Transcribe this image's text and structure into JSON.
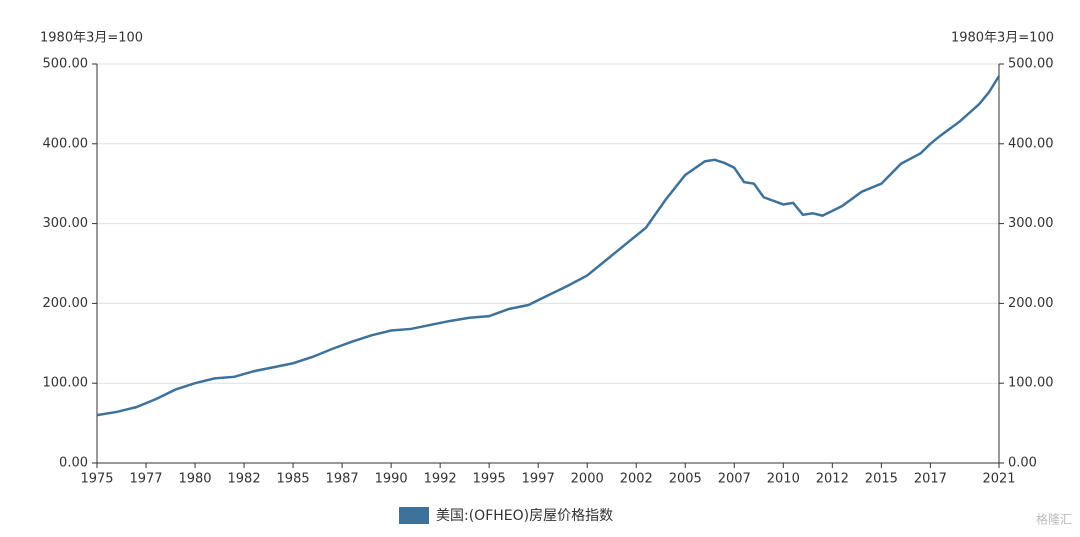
{
  "chart_data": {
    "type": "line",
    "y_label": "1980年3月=100",
    "y2_label": "1980年3月=100",
    "x": [
      1975,
      1976,
      1977,
      1978,
      1979,
      1980,
      1981,
      1982,
      1983,
      1984,
      1985,
      1986,
      1987,
      1988,
      1989,
      1990,
      1991,
      1992,
      1993,
      1994,
      1995,
      1996,
      1997,
      1998,
      1999,
      2000,
      2001,
      2002,
      2003,
      2004,
      2005,
      2006,
      2006.5,
      2007,
      2007.5,
      2008,
      2008.5,
      2009,
      2010,
      2010.5,
      2011,
      2011.5,
      2012,
      2012.5,
      2013,
      2014,
      2015,
      2016,
      2017,
      2017.5,
      2018,
      2019,
      2020,
      2020.5,
      2021
    ],
    "series": [
      {
        "name": "美国:(OFHEO)房屋价格指数",
        "color": "#3f729b",
        "values": [
          60,
          64,
          70,
          80,
          92,
          100,
          106,
          108,
          115,
          120,
          125,
          133,
          143,
          152,
          160,
          166,
          168,
          173,
          178,
          182,
          184,
          193,
          198,
          210,
          222,
          235,
          255,
          275,
          295,
          330,
          361,
          378,
          380,
          376,
          370,
          352,
          350,
          333,
          324,
          326,
          311,
          313,
          310,
          316,
          322,
          340,
          350,
          375,
          388,
          400,
          410,
          428,
          450,
          465,
          485
        ]
      }
    ],
    "xlim": [
      1975,
      2021
    ],
    "xticks": [
      {
        "value": 1975,
        "label": "1975"
      },
      {
        "value": 1977.5,
        "label": "1977"
      },
      {
        "value": 1980,
        "label": "1980"
      },
      {
        "value": 1982.5,
        "label": "1982"
      },
      {
        "value": 1985,
        "label": "1985"
      },
      {
        "value": 1987.5,
        "label": "1987"
      },
      {
        "value": 1990,
        "label": "1990"
      },
      {
        "value": 1992.5,
        "label": "1992"
      },
      {
        "value": 1995,
        "label": "1995"
      },
      {
        "value": 1997.5,
        "label": "1997"
      },
      {
        "value": 2000,
        "label": "2000"
      },
      {
        "value": 2002.5,
        "label": "2002"
      },
      {
        "value": 2005,
        "label": "2005"
      },
      {
        "value": 2007.5,
        "label": "2007"
      },
      {
        "value": 2010,
        "label": "2010"
      },
      {
        "value": 2012.5,
        "label": "2012"
      },
      {
        "value": 2015,
        "label": "2015"
      },
      {
        "value": 2017.5,
        "label": "2017"
      },
      {
        "value": 2021,
        "label": "2021"
      }
    ],
    "ylim": [
      0,
      500
    ],
    "yticks": [
      {
        "value": 0,
        "label": "0.00"
      },
      {
        "value": 100,
        "label": "100.00"
      },
      {
        "value": 200,
        "label": "200.00"
      },
      {
        "value": 300,
        "label": "300.00"
      },
      {
        "value": 400,
        "label": "400.00"
      },
      {
        "value": 500,
        "label": "500.00"
      }
    ],
    "y2lim": [
      0,
      500
    ],
    "y2ticks": [
      {
        "value": 0,
        "label": "0.00"
      },
      {
        "value": 100,
        "label": "100.00"
      },
      {
        "value": 200,
        "label": "200.00"
      },
      {
        "value": 300,
        "label": "300.00"
      },
      {
        "value": 400,
        "label": "400.00"
      },
      {
        "value": 500,
        "label": "500.00"
      }
    ],
    "grid": true,
    "legend": "bottom",
    "watermark": "格隆汇"
  }
}
